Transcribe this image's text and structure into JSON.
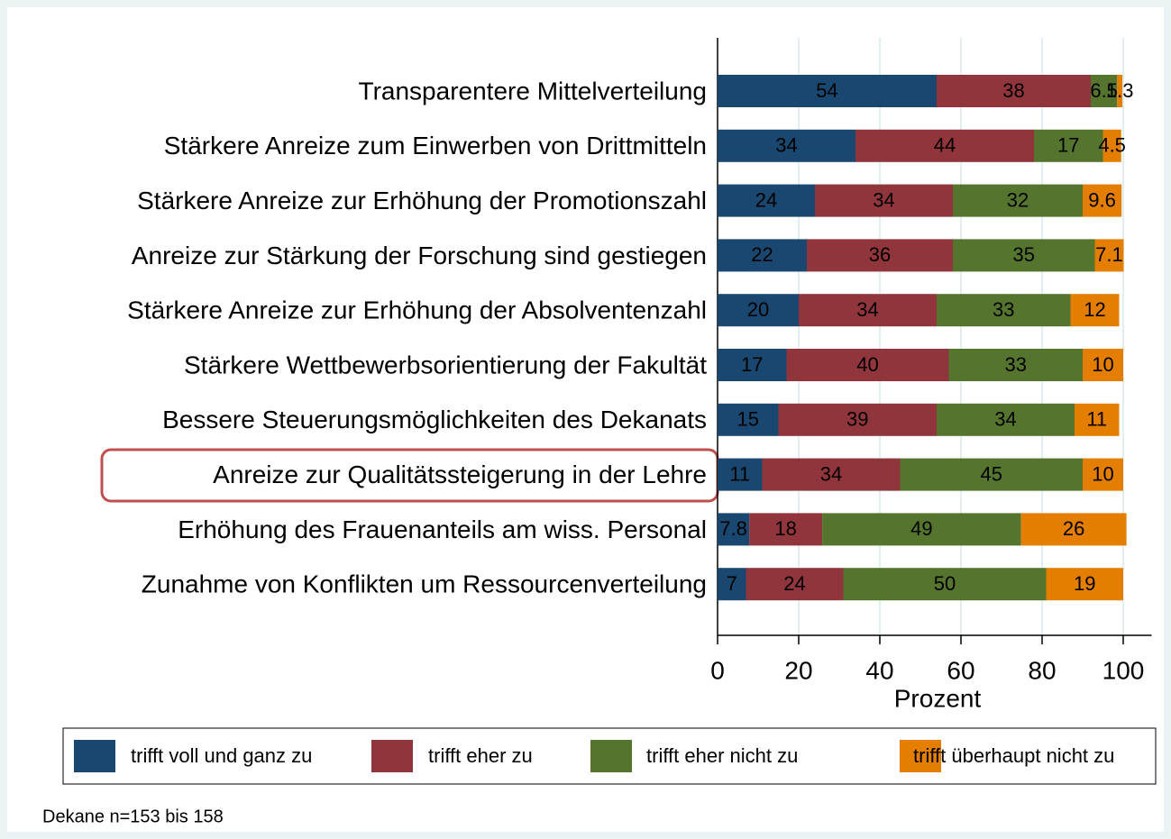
{
  "chart_data": {
    "type": "stacked-bar-horizontal",
    "categories": [
      "Transparentere Mittelverteilung",
      "Stärkere Anreize zum Einwerben von Drittmitteln",
      "Stärkere Anreize zur Erhöhung der Promotionszahl",
      "Anreize zur Stärkung der Forschung sind gestiegen",
      "Stärkere Anreize zur Erhöhung der Absolventenzahl",
      "Stärkere Wettbewerbsorientierung der Fakultät",
      "Bessere Steuerungsmöglichkeiten des Dekanats",
      "Anreize zur Qualitätssteigerung in der Lehre",
      "Erhöhung des Frauenanteils am wiss. Personal",
      "Zunahme von Konflikten um Ressourcenverteilung"
    ],
    "series": [
      {
        "name": "trifft voll und ganz zu",
        "color": "#1a476f",
        "values": [
          54,
          34,
          24,
          22,
          20,
          17,
          15,
          11,
          7.8,
          7
        ]
      },
      {
        "name": "trifft eher zu",
        "color": "#90353b",
        "values": [
          38,
          44,
          34,
          36,
          34,
          40,
          39,
          34,
          18,
          24
        ]
      },
      {
        "name": "trifft eher nicht zu",
        "color": "#55752f",
        "values": [
          6.5,
          17,
          32,
          35,
          33,
          33,
          34,
          45,
          49,
          50
        ]
      },
      {
        "name": "trifft überhaupt nicht zu",
        "color": "#e37e00",
        "values": [
          1.3,
          4.5,
          9.6,
          7.1,
          12,
          10,
          11,
          10,
          26,
          19
        ]
      }
    ],
    "xlabel": "Prozent",
    "xlim": [
      0,
      107
    ],
    "xticks": [
      0,
      20,
      40,
      60,
      80,
      100
    ],
    "grid": true,
    "legend": "bottom",
    "note": "Dekane n=153 bis 158"
  }
}
